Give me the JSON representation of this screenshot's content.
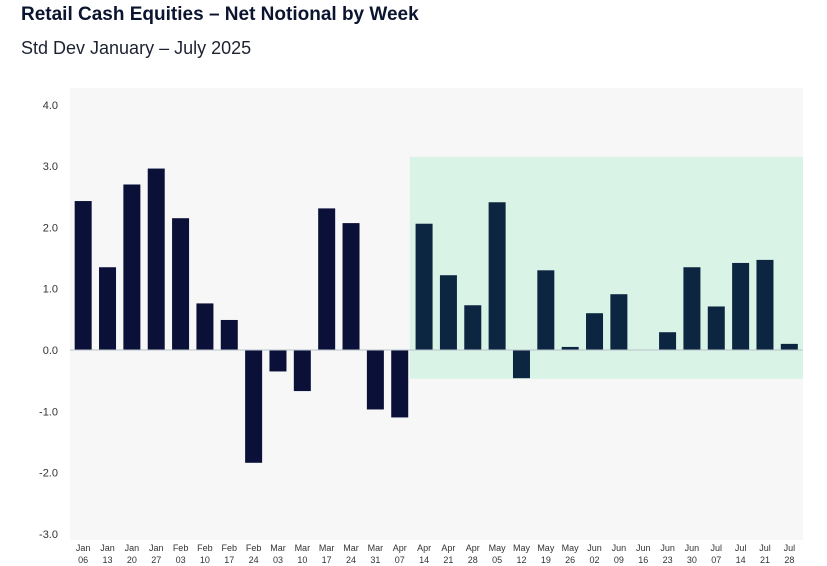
{
  "title": "Retail Cash Equities – Net Notional by Week",
  "subtitle": "Std Dev January – July 2025",
  "colors": {
    "bar_dark": "#0b1038",
    "bar_highlight": "#0c2540",
    "highlight_fill": "#d9f3e6",
    "plot_bg": "#f7f7f7"
  },
  "chart_data": {
    "type": "bar",
    "title": "Retail Cash Equities – Net Notional by Week",
    "subtitle": "Std Dev January – July 2025",
    "xlabel": "",
    "ylabel": "",
    "ylim": [
      -3.0,
      4.0
    ],
    "yticks": [
      "4.0",
      "3.0",
      "2.0",
      "1.0",
      "0.0",
      "-1.0",
      "-2.0",
      "-3.0"
    ],
    "grid": false,
    "categories": [
      [
        "Jan",
        "06"
      ],
      [
        "Jan",
        "13"
      ],
      [
        "Jan",
        "20"
      ],
      [
        "Jan",
        "27"
      ],
      [
        "Feb",
        "03"
      ],
      [
        "Feb",
        "10"
      ],
      [
        "Feb",
        "17"
      ],
      [
        "Feb",
        "24"
      ],
      [
        "Mar",
        "03"
      ],
      [
        "Mar",
        "10"
      ],
      [
        "Mar",
        "17"
      ],
      [
        "Mar",
        "24"
      ],
      [
        "Mar",
        "31"
      ],
      [
        "Apr",
        "07"
      ],
      [
        "Apr",
        "14"
      ],
      [
        "Apr",
        "21"
      ],
      [
        "Apr",
        "28"
      ],
      [
        "May",
        "05"
      ],
      [
        "May",
        "12"
      ],
      [
        "May",
        "19"
      ],
      [
        "May",
        "26"
      ],
      [
        "Jun",
        "02"
      ],
      [
        "Jun",
        "09"
      ],
      [
        "Jun",
        "16"
      ],
      [
        "Jun",
        "23"
      ],
      [
        "Jun",
        "30"
      ],
      [
        "Jul",
        "07"
      ],
      [
        "Jul",
        "14"
      ],
      [
        "Jul",
        "21"
      ],
      [
        "Jul",
        "28"
      ]
    ],
    "values": [
      2.43,
      1.35,
      2.7,
      2.96,
      2.15,
      0.76,
      0.49,
      -1.84,
      -0.35,
      -0.67,
      2.31,
      2.07,
      -0.97,
      -1.1,
      2.06,
      1.22,
      0.73,
      2.41,
      -0.46,
      1.3,
      0.05,
      0.6,
      0.91,
      0.0,
      0.29,
      1.35,
      0.71,
      1.42,
      1.47,
      0.1
    ],
    "highlight": {
      "from_index": 14,
      "to_index": 29,
      "ymin": -0.47,
      "ymax": 3.15
    }
  }
}
